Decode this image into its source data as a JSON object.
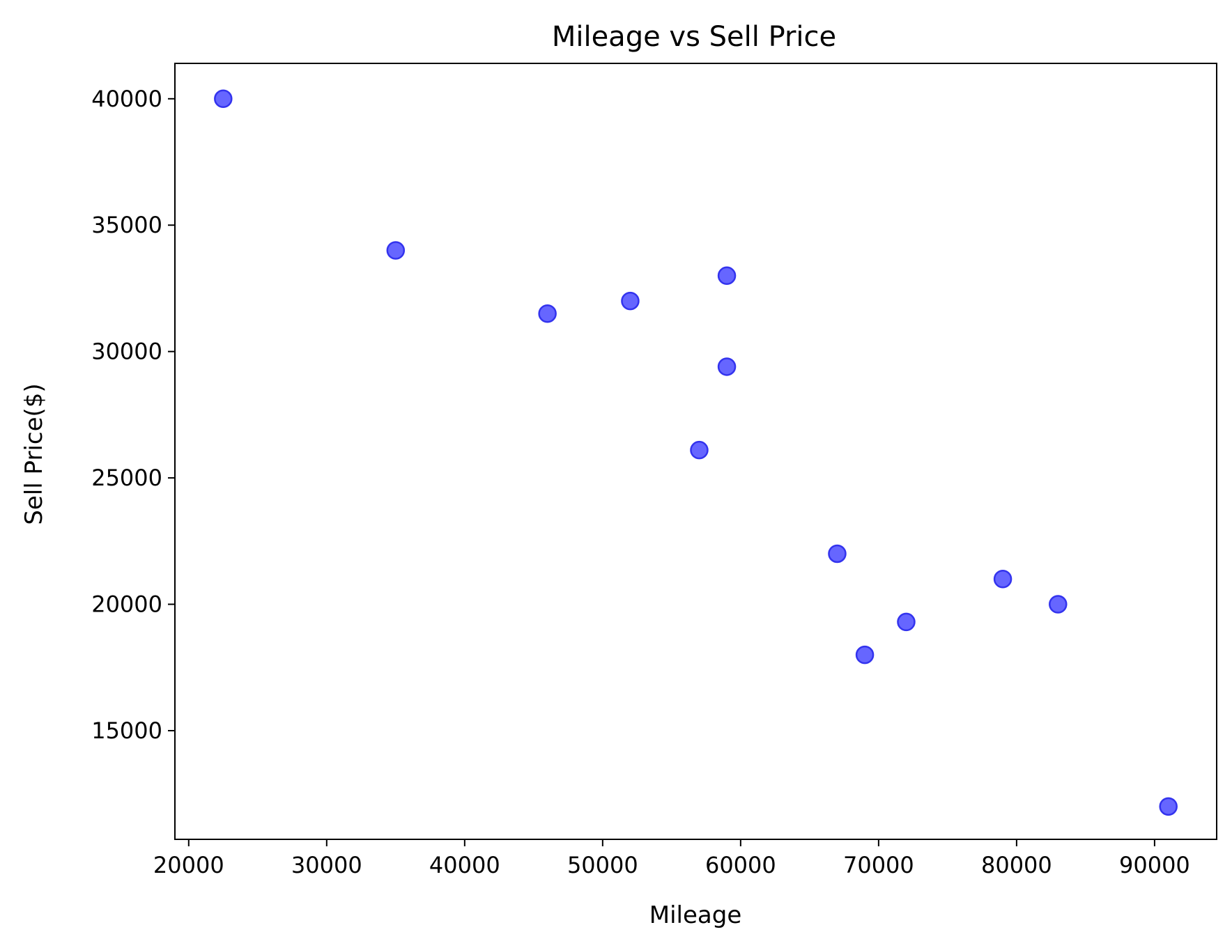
{
  "chart_data": {
    "type": "scatter",
    "title": "Mileage vs Sell Price",
    "xlabel": "Mileage",
    "ylabel": "Sell Price($)",
    "xlim": [
      19000,
      94500
    ],
    "ylim": [
      10700,
      41400
    ],
    "xticks": [
      20000,
      30000,
      40000,
      50000,
      60000,
      70000,
      80000,
      90000
    ],
    "yticks": [
      15000,
      20000,
      25000,
      30000,
      35000,
      40000
    ],
    "grid": false,
    "marker_fill": "#6666ff",
    "marker_edge": "#3333ee",
    "points": [
      {
        "x": 22500,
        "y": 40000
      },
      {
        "x": 35000,
        "y": 34000
      },
      {
        "x": 46000,
        "y": 31500
      },
      {
        "x": 52000,
        "y": 32000
      },
      {
        "x": 59000,
        "y": 33000
      },
      {
        "x": 59000,
        "y": 29400
      },
      {
        "x": 57000,
        "y": 26100
      },
      {
        "x": 67000,
        "y": 22000
      },
      {
        "x": 69000,
        "y": 18000
      },
      {
        "x": 72000,
        "y": 19300
      },
      {
        "x": 79000,
        "y": 21000
      },
      {
        "x": 83000,
        "y": 20000
      },
      {
        "x": 91000,
        "y": 12000
      }
    ]
  }
}
